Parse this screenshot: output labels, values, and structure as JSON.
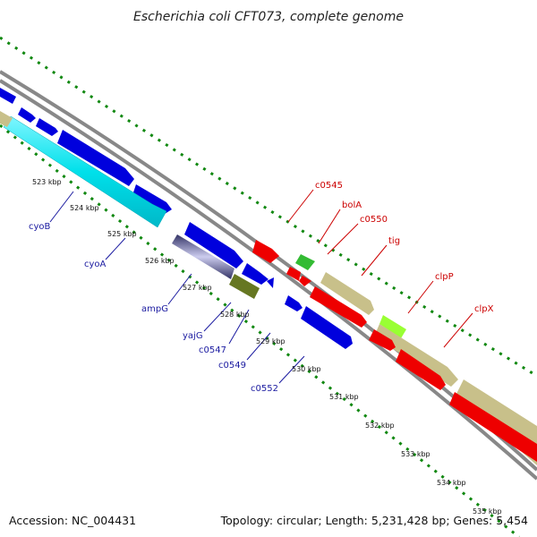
{
  "title": "Escherichia coli CFT073, complete genome",
  "footer": {
    "accession": "Accession: NC_004431",
    "topology": "Topology: circular; Length: 5,231,428 bp; Genes: 5,454"
  },
  "ticks": [
    "523 kbp",
    "524 kbp",
    "525 kbp",
    "526 kbp",
    "527 kbp",
    "528 kbp",
    "529 kbp",
    "530 kbp",
    "531 kbp",
    "532 kbp",
    "533 kbp",
    "534 kbp",
    "535 kbp"
  ],
  "genes_reverse": [
    "cyoB",
    "cyoA",
    "ampG",
    "yajG",
    "c0547",
    "c0549",
    "c0552"
  ],
  "genes_forward": [
    "c0545",
    "bolA",
    "c0550",
    "tig",
    "clpP",
    "clpX"
  ],
  "colors": {
    "blue_gene": "#0000dd",
    "cyan_gene": "#00e0e8",
    "red_gene": "#ee0000",
    "olive_gene": "#c8c08a",
    "green_gene": "#33bb33",
    "dark_olive_gene": "#667722",
    "lime_gene": "#99ff33",
    "backbone": "#888888",
    "tick_marks": "#118811",
    "label_blue": "#1a1aa0",
    "label_red": "#cc0000"
  }
}
